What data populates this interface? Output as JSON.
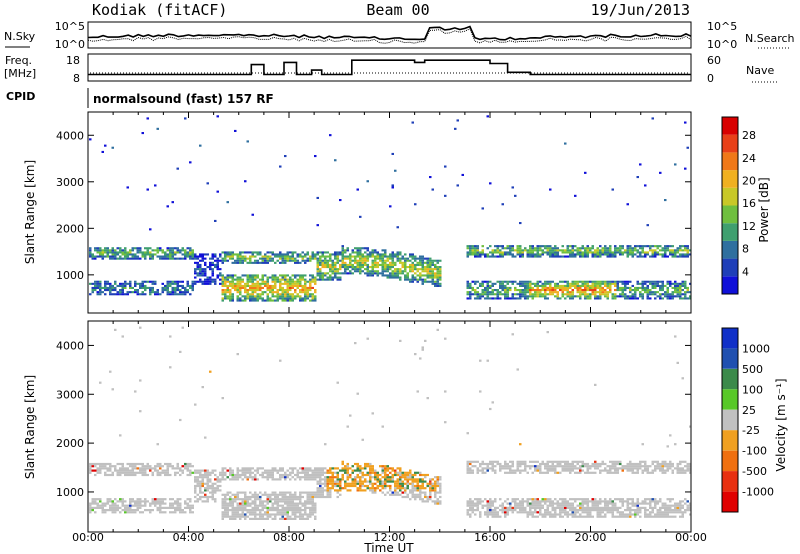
{
  "header": {
    "title": "Kodiak (fitACF)",
    "beam": "Beam 00",
    "date": "19/Jun/2013"
  },
  "panels": {
    "nsky_label": "N.Sky",
    "nsearch_label": "N.Search",
    "freq_label_1": "Freq.",
    "freq_label_2": "[MHz]",
    "nave_label": "Nave",
    "cpid_label": "CPID",
    "cpid_text": "normalsound (fast) 157 RF",
    "nsky_ticks": [
      "10^5",
      "10^0"
    ],
    "nsearch_ticks": [
      "10^5",
      "10^0"
    ],
    "freq_ticks": [
      "18",
      "8"
    ],
    "nave_ticks": [
      "60",
      "0"
    ]
  },
  "chart_data": [
    {
      "type": "heatmap",
      "name": "power",
      "ylabel": "Slant Range [km]",
      "xlabel": "Time UT",
      "x_ticks": [
        "00:00",
        "04:00",
        "08:00",
        "12:00",
        "16:00",
        "20:00",
        "00:00"
      ],
      "y_ticks": [
        "1000",
        "2000",
        "3000",
        "4000"
      ],
      "ylim": [
        180,
        4500
      ],
      "colorbar": {
        "label": "Power [dB]",
        "ticks": [
          "4",
          "8",
          "12",
          "16",
          "20",
          "24",
          "28"
        ],
        "colors": [
          "#1010d8",
          "#1f3fb8",
          "#2f6f9f",
          "#3f9f6f",
          "#6fbf3f",
          "#c8c828",
          "#f0b020",
          "#f07818",
          "#e84018",
          "#d80000"
        ]
      },
      "bands_note": "echo regions approx: 00:00-04:00 at ~700 & ~1500 km; 05:00-14:00 descending band 800-1400 km; 15:00-24:00 at ~600 & ~1500 km"
    },
    {
      "type": "heatmap",
      "name": "velocity",
      "ylabel": "Slant Range [km]",
      "xlabel": "Time UT",
      "x_ticks": [
        "00:00",
        "04:00",
        "08:00",
        "12:00",
        "16:00",
        "20:00",
        "00:00"
      ],
      "y_ticks": [
        "1000",
        "2000",
        "3000",
        "4000"
      ],
      "ylim": [
        180,
        4500
      ],
      "colorbar": {
        "label": "Velocity [m s⁻¹]",
        "ticks": [
          "1000",
          "500",
          "100",
          "25",
          "-25",
          "-100",
          "-500",
          "-1000"
        ],
        "colors": [
          "#1030c8",
          "#2050b0",
          "#3b8a4a",
          "#58c828",
          "#c0c0c0",
          "#f0a020",
          "#f07010",
          "#e83010",
          "#e00000"
        ]
      }
    }
  ],
  "colors": {
    "ground_scatter": "#bdbdbd",
    "low_power": "#1a2fd0",
    "mid_power": "#4aa070",
    "high_power": "#f0a020"
  }
}
